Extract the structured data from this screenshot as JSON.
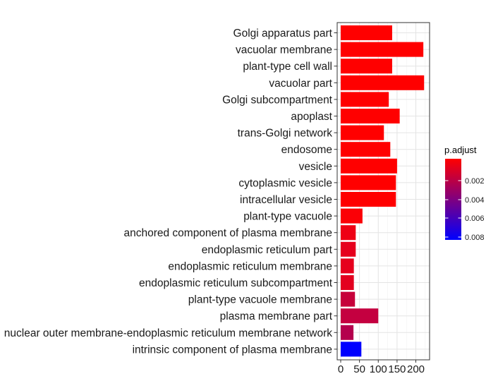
{
  "chart_data": {
    "type": "bar",
    "orientation": "horizontal",
    "categories": [
      "Golgi apparatus part",
      "vacuolar membrane",
      "plant-type cell wall",
      "vacuolar part",
      "Golgi subcompartment",
      "apoplast",
      "trans-Golgi network",
      "endosome",
      "vesicle",
      "cytoplasmic vesicle",
      "intracellular vesicle",
      "plant-type vacuole",
      "anchored component of plasma membrane",
      "endoplasmic reticulum part",
      "endoplasmic reticulum membrane",
      "endoplasmic reticulum subcompartment",
      "plant-type vacuole membrane",
      "plasma membrane part",
      "nuclear outer membrane-endoplasmic reticulum membrane network",
      "intrinsic component of plasma membrane"
    ],
    "values": [
      137,
      220,
      137,
      222,
      128,
      157,
      115,
      132,
      150,
      147,
      147,
      58,
      40,
      40,
      35,
      35,
      38,
      100,
      34,
      55
    ],
    "colors": [
      "#ff0000",
      "#ff0000",
      "#ff0000",
      "#ff0000",
      "#ff0000",
      "#ff0000",
      "#ff0000",
      "#ff0000",
      "#ff0000",
      "#ff0000",
      "#ff0000",
      "#fb0006",
      "#ee0014",
      "#e6001d",
      "#e6001d",
      "#e3001f",
      "#c6003b",
      "#c40040",
      "#b4004d",
      "#0000ff"
    ],
    "xticks": [
      0,
      50,
      100,
      150,
      200
    ],
    "xlim": [
      0,
      233
    ],
    "xlabel": "",
    "ylabel": "",
    "grid": true,
    "legend": {
      "title": "p.adjust",
      "position": "right",
      "ticks": [
        "0.002",
        "0.004",
        "0.006",
        "0.008"
      ],
      "low_color": "#ff0000",
      "high_color": "#0000ff"
    }
  }
}
